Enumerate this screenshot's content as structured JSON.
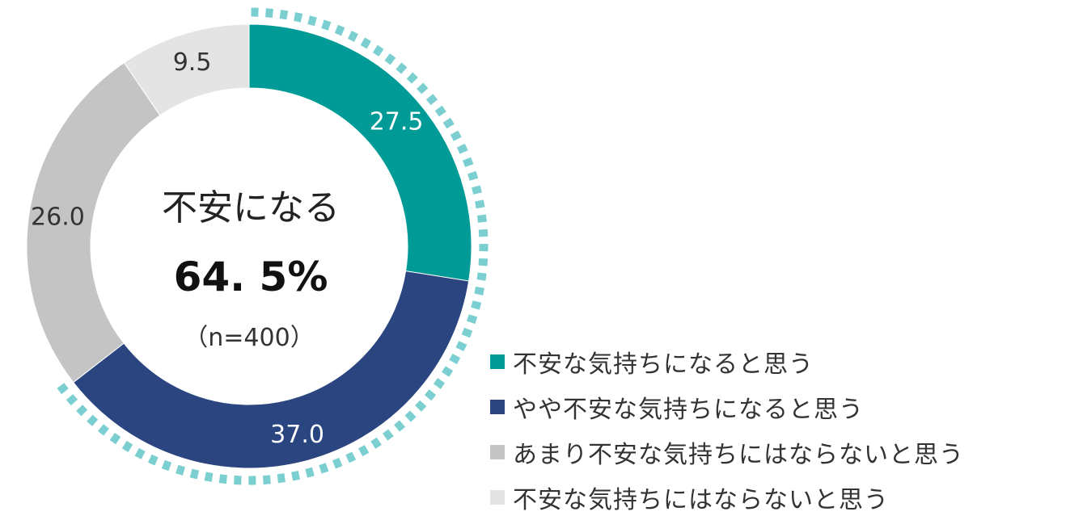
{
  "chart_data": {
    "type": "pie",
    "style": "donut",
    "categories": [
      "不安な気持ちになると思う",
      "やや不安な気持ちになると思う",
      "あまり不安な気持ちにはならないと思う",
      "不安な気持ちにはならないと思う"
    ],
    "values": [
      27.5,
      37.0,
      26.0,
      9.5
    ],
    "value_labels": [
      "27.5",
      "37.0",
      "26.0",
      "9.5"
    ],
    "colors": [
      "#009b96",
      "#2b4580",
      "#c4c4c4",
      "#e4e4e4"
    ],
    "label_colors": [
      "#ffffff",
      "#ffffff",
      "#333333",
      "#333333"
    ],
    "highlight_color": "#7ccfd0",
    "highlight_categories": [
      0,
      1
    ],
    "center": {
      "title": "不安になる",
      "value": "64. 5%",
      "n": "（n=400）"
    },
    "legend_position": "bottom-right"
  }
}
